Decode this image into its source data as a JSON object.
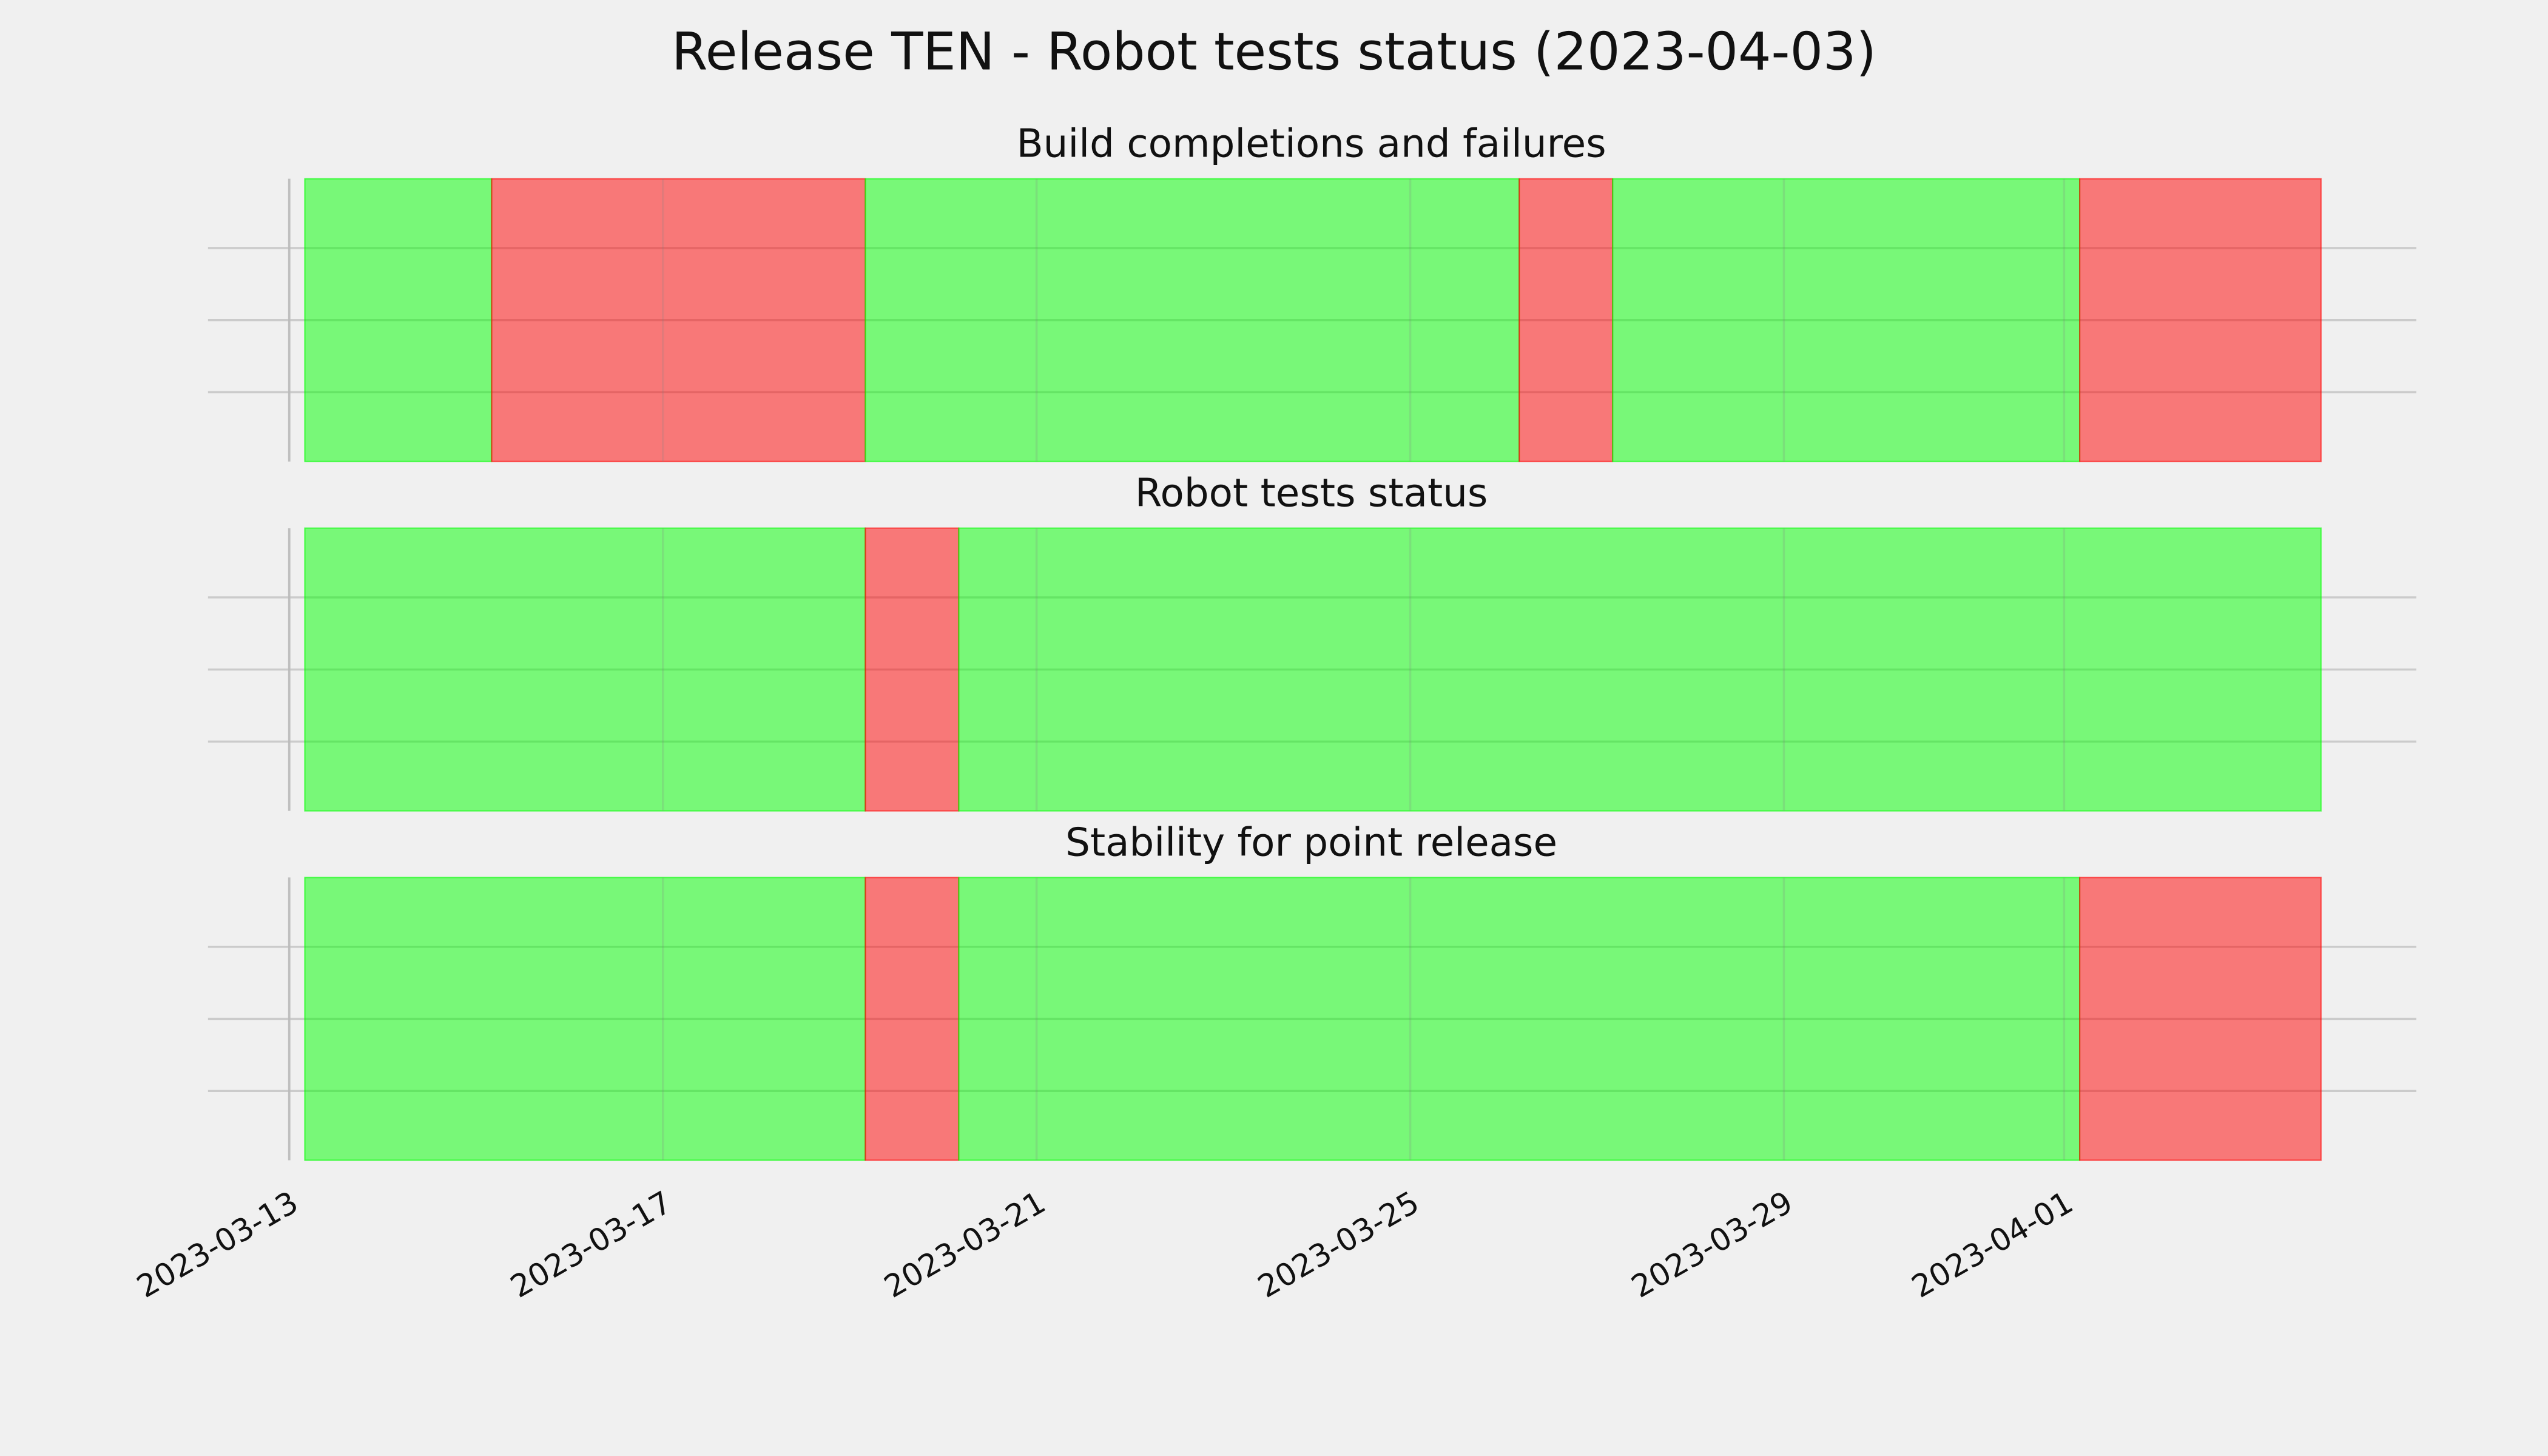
{
  "title": "Release TEN - Robot tests status (2023-04-03)",
  "x_axis": {
    "xlim": [
      "2023-03-13T00:00",
      "2023-04-04T18:30"
    ],
    "xticks": [
      "2023-03-13",
      "2023-03-17",
      "2023-03-21",
      "2023-03-25",
      "2023-03-29",
      "2023-04-01"
    ]
  },
  "chart_data": [
    {
      "type": "timeline",
      "title": "Build completions and failures",
      "grid": true,
      "alpha": 0.5,
      "spans": [
        {
          "start": "2023-03-13T04:00",
          "end": "2023-03-15T04:00",
          "color": "#00ff00"
        },
        {
          "start": "2023-03-15T04:00",
          "end": "2023-03-19T04:00",
          "color": "#ff0000"
        },
        {
          "start": "2023-03-19T04:00",
          "end": "2023-03-26T04:00",
          "color": "#00ff00"
        },
        {
          "start": "2023-03-26T04:00",
          "end": "2023-03-27T04:00",
          "color": "#ff0000"
        },
        {
          "start": "2023-03-27T04:00",
          "end": "2023-04-01T04:00",
          "color": "#00ff00"
        },
        {
          "start": "2023-04-01T04:00",
          "end": "2023-04-03T18:00",
          "color": "#ff0000"
        }
      ]
    },
    {
      "type": "timeline",
      "title": "Robot tests status",
      "grid": true,
      "alpha": 0.5,
      "spans": [
        {
          "start": "2023-03-13T04:00",
          "end": "2023-03-19T04:00",
          "color": "#00ff00"
        },
        {
          "start": "2023-03-19T04:00",
          "end": "2023-03-20T04:00",
          "color": "#ff0000"
        },
        {
          "start": "2023-03-20T04:00",
          "end": "2023-04-03T18:00",
          "color": "#00ff00"
        }
      ]
    },
    {
      "type": "timeline",
      "title": "Stability for point release",
      "grid": true,
      "alpha": 0.5,
      "spans": [
        {
          "start": "2023-03-13T04:00",
          "end": "2023-03-19T04:00",
          "color": "#00ff00"
        },
        {
          "start": "2023-03-19T04:00",
          "end": "2023-03-20T04:00",
          "color": "#ff0000"
        },
        {
          "start": "2023-03-20T04:00",
          "end": "2023-04-01T04:00",
          "color": "#00ff00"
        },
        {
          "start": "2023-04-01T04:00",
          "end": "2023-04-03T18:00",
          "color": "#ff0000"
        }
      ]
    }
  ]
}
